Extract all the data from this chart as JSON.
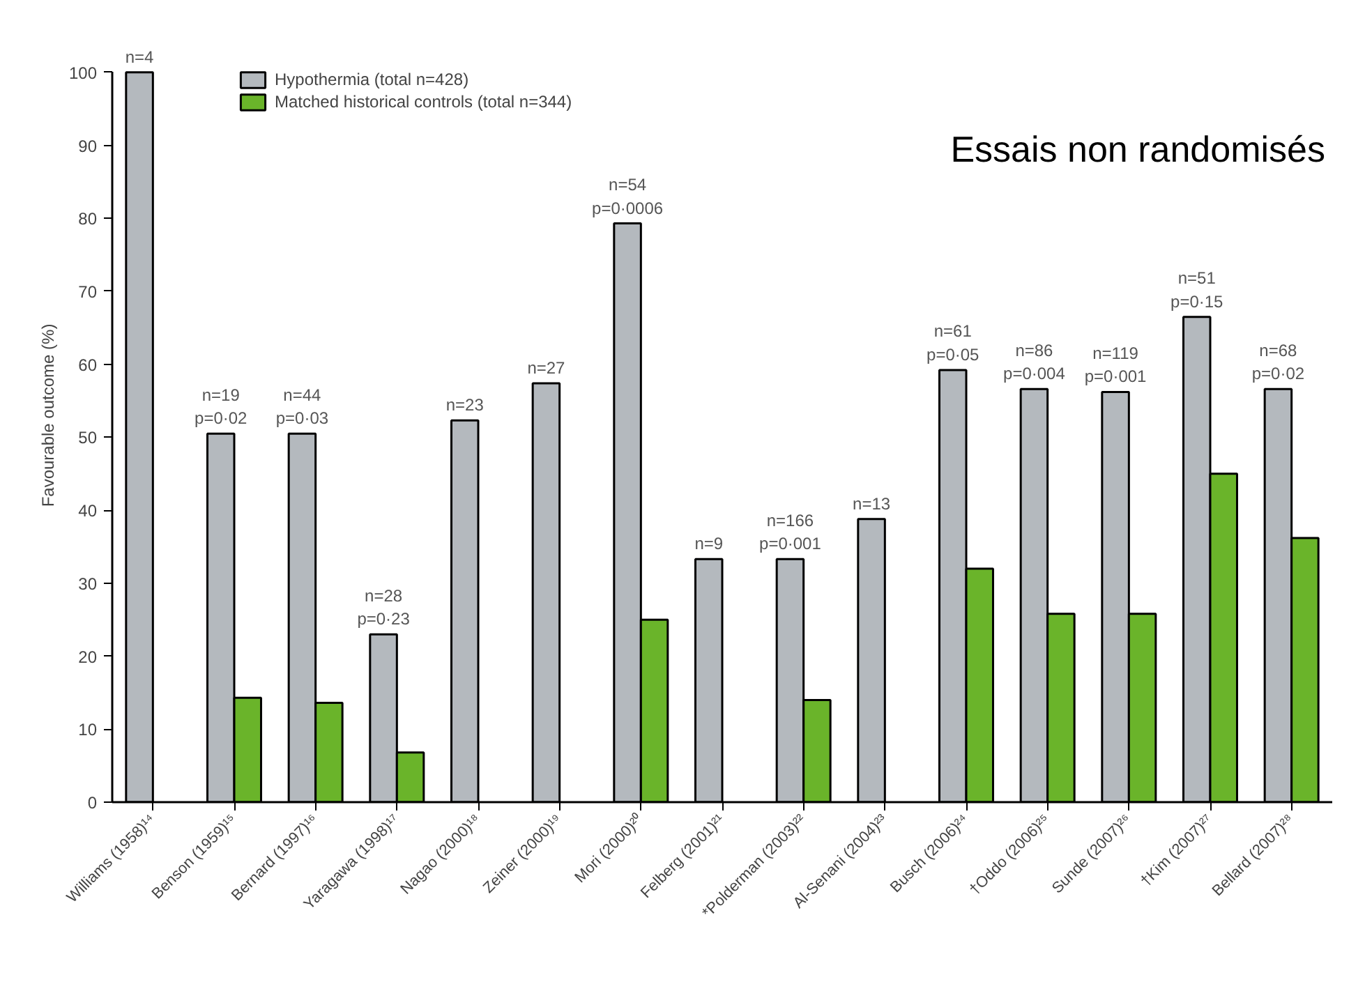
{
  "chart_data": {
    "type": "bar",
    "title": "Essais non randomisés",
    "ylabel": "Favourable outcome (%)",
    "categories": [
      "Williams (1958)¹⁴",
      "Benson (1959)¹⁵",
      "Bernard (1997)¹⁶",
      "Yaragawa (1998)¹⁷",
      "Nagao (2000)¹⁸",
      "Zeiner (2000)¹⁹",
      "Mori (2000)²⁰",
      "Felberg (2001)²¹",
      "*Polderman (2003)²²",
      "Al-Senani (2004)²³",
      "Busch (2006)²⁴",
      "†Oddo (2006)²⁵",
      "Sunde (2007)²⁶",
      "†Kim (2007)²⁷",
      "Bellard (2007)²⁸"
    ],
    "series": [
      {
        "name": "Hypothermia (total n=428)",
        "color": "#b4b9be",
        "values": [
          100,
          50.5,
          50.5,
          23,
          52.3,
          57.4,
          79.3,
          33.3,
          33.3,
          38.8,
          59.2,
          56.6,
          56.2,
          66.5,
          56.6
        ]
      },
      {
        "name": "Matched historical controls (total n=344)",
        "color": "#6ab42a",
        "values": [
          null,
          14.3,
          13.6,
          6.8,
          null,
          null,
          25.0,
          null,
          14.0,
          null,
          32.0,
          25.8,
          25.8,
          45.0,
          36.2
        ]
      }
    ],
    "ylim": [
      0,
      100
    ],
    "yticks": [
      0,
      10,
      20,
      30,
      40,
      50,
      60,
      70,
      80,
      90,
      100
    ],
    "grid": false,
    "legend": "top left",
    "annotations": [
      {
        "text": "n=4",
        "x": "Williams (1958)¹⁴",
        "y": 100
      },
      {
        "text": "n=19\np=0·02",
        "x": "Benson (1959)¹⁵",
        "y": 50.5
      },
      {
        "text": "n=44\np=0·03",
        "x": "Bernard (1997)¹⁶",
        "y": 50.5
      },
      {
        "text": "n=28\np=0·23",
        "x": "Yaragawa (1998)¹⁷",
        "y": 23
      },
      {
        "text": "n=23",
        "x": "Nagao (2000)¹⁸",
        "y": 52.3
      },
      {
        "text": "n=27",
        "x": "Zeiner (2000)¹⁹",
        "y": 57.4
      },
      {
        "text": "n=54\np=0·0006",
        "x": "Mori (2000)²⁰",
        "y": 79.3
      },
      {
        "text": "n=9",
        "x": "Felberg (2001)²¹",
        "y": 33.3
      },
      {
        "text": "n=166\np=0·001",
        "x": "*Polderman (2003)²²",
        "y": 33.3
      },
      {
        "text": "n=13",
        "x": "Al-Senani (2004)²³",
        "y": 38.8
      },
      {
        "text": "n=61\np=0·05",
        "x": "Busch (2006)²⁴",
        "y": 59.2
      },
      {
        "text": "n=86\np=0·004",
        "x": "†Oddo (2006)²⁵",
        "y": 56.6
      },
      {
        "text": "n=119\np=0·001",
        "x": "Sunde (2007)²⁶",
        "y": 56.2
      },
      {
        "text": "n=51\np=0·15",
        "x": "†Kim (2007)²⁷",
        "y": 66.5
      },
      {
        "text": "n=68\np=0·02",
        "x": "Bellard (2007)²⁸",
        "y": 56.6
      }
    ]
  }
}
